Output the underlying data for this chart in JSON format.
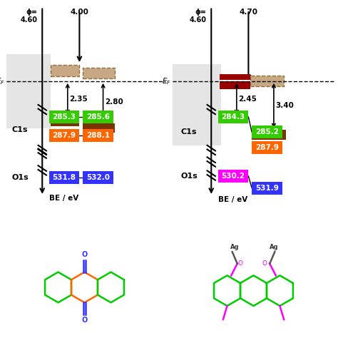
{
  "bg_color": "#ffffff",
  "gray_box_color": "#cccccc",
  "brown_color": "#7B3300",
  "dark_red_color": "#990000",
  "tan_color": "#C8A882",
  "tan_edge_color": "#8B7040",
  "green_color": "#33CC00",
  "orange_color": "#FF6600",
  "blue_color": "#3333FF",
  "magenta_color": "#FF00FF",
  "mol_green": "#00CC00",
  "left_gap1": "2.35",
  "left_gap2": "2.80",
  "right_gap1": "2.45",
  "right_gap2": "3.40",
  "left_c1s": [
    [
      "285.3",
      "#33CC00"
    ],
    [
      "285.6",
      "#33CC00"
    ],
    [
      "287.9",
      "#FF6600"
    ],
    [
      "288.1",
      "#FF6600"
    ]
  ],
  "left_o1s": [
    [
      "531.8",
      "#3333FF"
    ],
    [
      "532.0",
      "#3333FF"
    ]
  ],
  "right_c1s": [
    [
      "284.3",
      "#33CC00"
    ],
    [
      "285.2",
      "#33CC00"
    ],
    [
      "287.9",
      "#FF6600"
    ]
  ],
  "right_o1s": [
    [
      "530.2",
      "#FF00FF"
    ],
    [
      "531.9",
      "#3333FF"
    ]
  ]
}
